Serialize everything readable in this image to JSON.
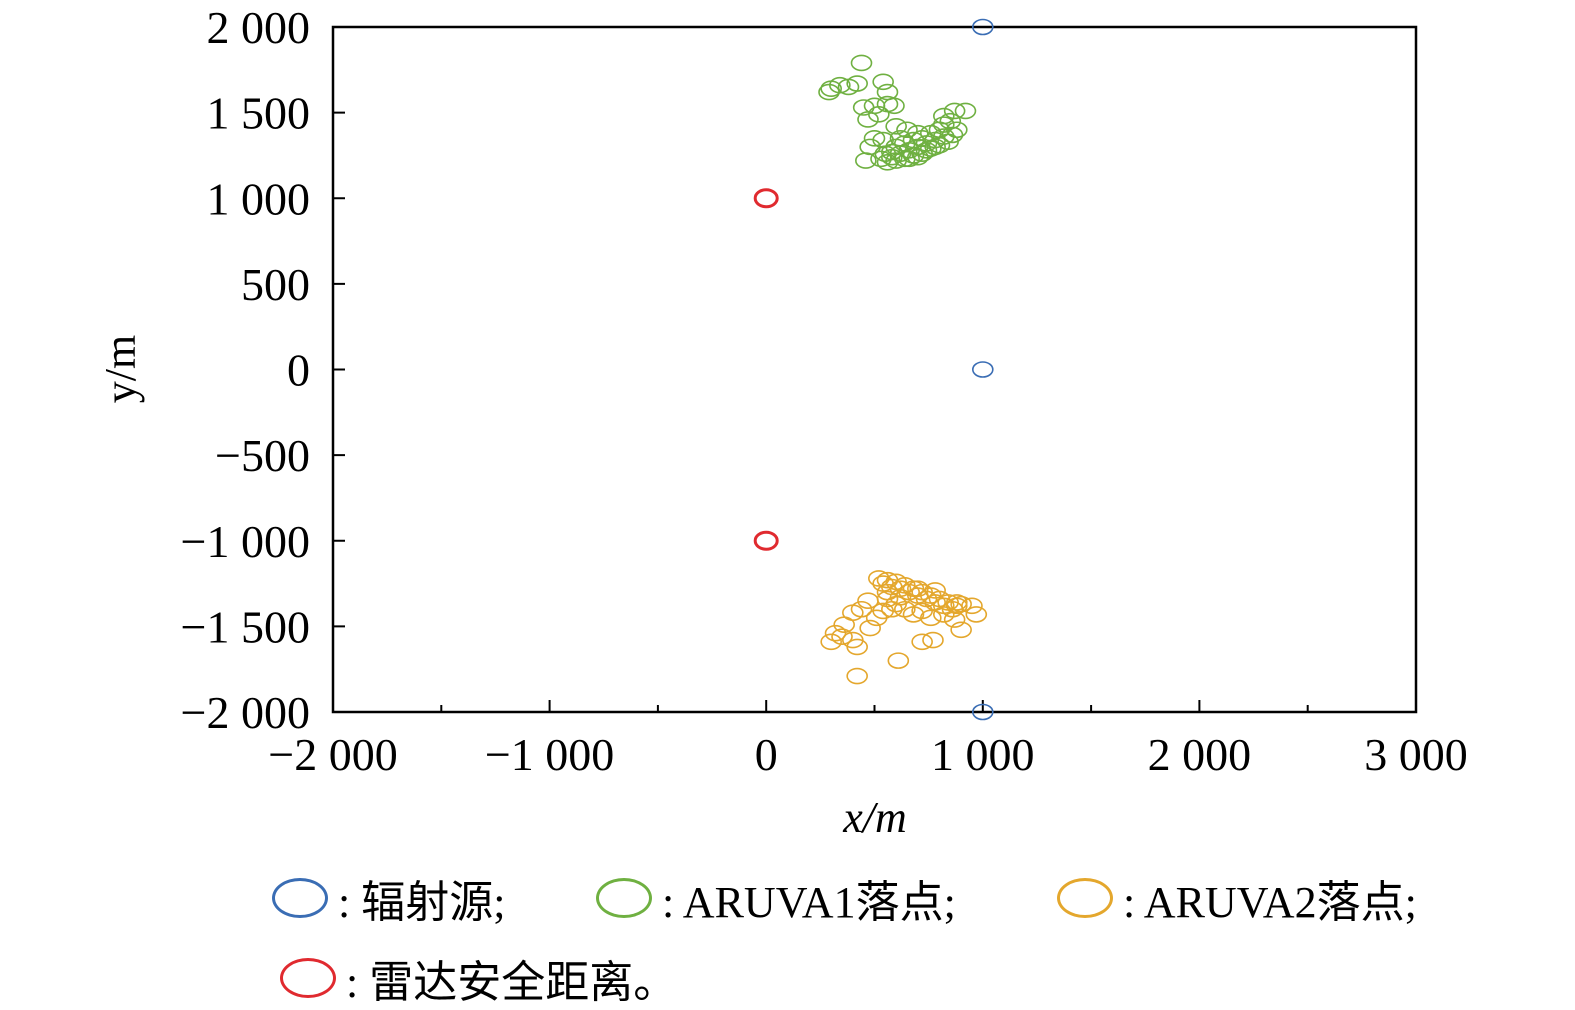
{
  "chart_data": {
    "type": "scatter",
    "xlabel": "x/m",
    "ylabel": "y/m",
    "xlim": [
      -2000,
      3000
    ],
    "ylim": [
      -2000,
      2000
    ],
    "xticks": [
      -2000,
      -1000,
      0,
      1000,
      2000,
      3000
    ],
    "xtick_labels": [
      "−2 000",
      "−1 000",
      "0",
      "1 000",
      "2 000",
      "3 000"
    ],
    "yticks": [
      2000,
      1500,
      1000,
      500,
      0,
      -500,
      -1000,
      -1500,
      -2000
    ],
    "ytick_labels": [
      "2 000",
      "1 500",
      "1 000",
      "500",
      "0",
      "−500",
      "−1 000",
      "−1 500",
      "−2 000"
    ],
    "grid": false,
    "legend_position": "bottom",
    "series": [
      {
        "name": "辐射源",
        "color": "#3a6db4",
        "marker": "circle",
        "points": [
          [
            1000,
            2000
          ],
          [
            1000,
            0
          ],
          [
            1000,
            -2000
          ]
        ]
      },
      {
        "name": "ARUVA1落点",
        "color": "#6fb041",
        "marker": "circle",
        "points": [
          [
            440,
            1790
          ],
          [
            300,
            1640
          ],
          [
            340,
            1660
          ],
          [
            380,
            1650
          ],
          [
            420,
            1670
          ],
          [
            290,
            1620
          ],
          [
            540,
            1680
          ],
          [
            560,
            1620
          ],
          [
            560,
            1550
          ],
          [
            500,
            1540
          ],
          [
            450,
            1530
          ],
          [
            590,
            1540
          ],
          [
            520,
            1490
          ],
          [
            470,
            1460
          ],
          [
            820,
            1480
          ],
          [
            870,
            1510
          ],
          [
            920,
            1510
          ],
          [
            880,
            1400
          ],
          [
            500,
            1350
          ],
          [
            540,
            1340
          ],
          [
            480,
            1300
          ],
          [
            460,
            1220
          ],
          [
            530,
            1230
          ],
          [
            560,
            1210
          ],
          [
            580,
            1240
          ],
          [
            600,
            1220
          ],
          [
            620,
            1260
          ],
          [
            640,
            1230
          ],
          [
            660,
            1280
          ],
          [
            680,
            1250
          ],
          [
            700,
            1300
          ],
          [
            720,
            1260
          ],
          [
            740,
            1320
          ],
          [
            760,
            1290
          ],
          [
            780,
            1340
          ],
          [
            800,
            1310
          ],
          [
            820,
            1360
          ],
          [
            840,
            1330
          ],
          [
            860,
            1370
          ],
          [
            720,
            1350
          ],
          [
            760,
            1380
          ],
          [
            800,
            1400
          ],
          [
            820,
            1430
          ],
          [
            850,
            1450
          ],
          [
            640,
            1320
          ],
          [
            600,
            1300
          ],
          [
            580,
            1270
          ],
          [
            550,
            1260
          ],
          [
            620,
            1350
          ],
          [
            680,
            1340
          ],
          [
            660,
            1230
          ],
          [
            700,
            1240
          ],
          [
            740,
            1280
          ],
          [
            780,
            1300
          ],
          [
            600,
            1420
          ],
          [
            650,
            1400
          ],
          [
            700,
            1380
          ]
        ]
      },
      {
        "name": "ARUVA2落点",
        "color": "#e4a72d",
        "marker": "circle",
        "points": [
          [
            520,
            -1220
          ],
          [
            540,
            -1250
          ],
          [
            560,
            -1230
          ],
          [
            580,
            -1270
          ],
          [
            600,
            -1240
          ],
          [
            620,
            -1280
          ],
          [
            640,
            -1260
          ],
          [
            660,
            -1300
          ],
          [
            680,
            -1280
          ],
          [
            700,
            -1320
          ],
          [
            720,
            -1300
          ],
          [
            740,
            -1340
          ],
          [
            760,
            -1320
          ],
          [
            780,
            -1360
          ],
          [
            800,
            -1340
          ],
          [
            820,
            -1380
          ],
          [
            840,
            -1360
          ],
          [
            860,
            -1400
          ],
          [
            880,
            -1380
          ],
          [
            900,
            -1370
          ],
          [
            950,
            -1380
          ],
          [
            970,
            -1430
          ],
          [
            560,
            -1340
          ],
          [
            600,
            -1370
          ],
          [
            640,
            -1400
          ],
          [
            680,
            -1430
          ],
          [
            720,
            -1410
          ],
          [
            760,
            -1450
          ],
          [
            820,
            -1430
          ],
          [
            870,
            -1460
          ],
          [
            900,
            -1520
          ],
          [
            470,
            -1350
          ],
          [
            440,
            -1400
          ],
          [
            400,
            -1420
          ],
          [
            360,
            -1490
          ],
          [
            320,
            -1540
          ],
          [
            300,
            -1590
          ],
          [
            350,
            -1560
          ],
          [
            400,
            -1580
          ],
          [
            420,
            -1620
          ],
          [
            480,
            -1510
          ],
          [
            510,
            -1450
          ],
          [
            540,
            -1410
          ],
          [
            580,
            -1400
          ],
          [
            620,
            -1330
          ],
          [
            700,
            -1280
          ],
          [
            720,
            -1590
          ],
          [
            770,
            -1580
          ],
          [
            610,
            -1700
          ],
          [
            420,
            -1790
          ],
          [
            560,
            -1300
          ],
          [
            780,
            -1290
          ],
          [
            880,
            -1360
          ]
        ]
      },
      {
        "name": "雷达安全距离",
        "color": "#e02a2f",
        "marker": "circle",
        "points": [
          [
            0,
            1000
          ],
          [
            0,
            -1000
          ]
        ]
      }
    ]
  },
  "legend": [
    {
      "name": "辐射源",
      "label": ": 辐射源;",
      "color": "#3a6db4"
    },
    {
      "name": "ARUVA1落点",
      "label": ": ARUVA1落点;",
      "color": "#6fb041"
    },
    {
      "name": "ARUVA2落点",
      "label": ": ARUVA2落点;",
      "color": "#e4a72d"
    },
    {
      "name": "雷达安全距离",
      "label": ": 雷达安全距离。",
      "color": "#e02a2f"
    }
  ]
}
